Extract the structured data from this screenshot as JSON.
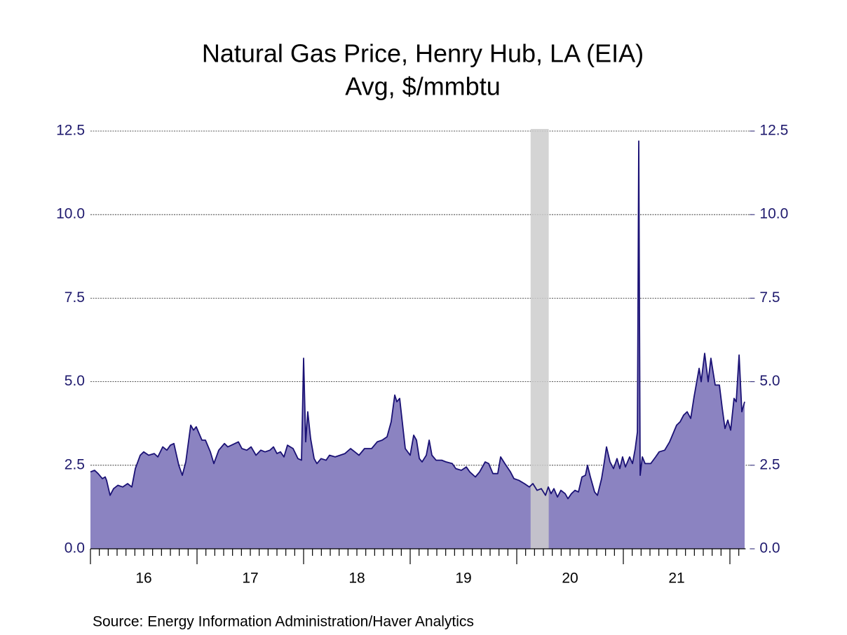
{
  "chart_data": {
    "type": "area",
    "title": "Natural Gas Price, Henry Hub, LA (EIA)",
    "subtitle": "Avg, $/mmbtu",
    "source": "Source:  Energy Information Administration/Haver Analytics",
    "fill_color": "#8b83c1",
    "line_color": "#1a1175",
    "recession_color": "#cccccc",
    "recession": [
      20.13,
      20.3
    ],
    "xlim": [
      16,
      22.2
    ],
    "xticks": [
      {
        "value": 16.5,
        "label": "16"
      },
      {
        "value": 17.5,
        "label": "17"
      },
      {
        "value": 18.5,
        "label": "18"
      },
      {
        "value": 19.5,
        "label": "19"
      },
      {
        "value": 20.5,
        "label": "20"
      },
      {
        "value": 21.5,
        "label": "21"
      }
    ],
    "ylim": [
      0,
      12.5
    ],
    "yticks": [
      {
        "value": 0,
        "label": "0.0"
      },
      {
        "value": 2.5,
        "label": "2.5"
      },
      {
        "value": 5,
        "label": "5.0"
      },
      {
        "value": 7.5,
        "label": "7.5"
      },
      {
        "value": 10,
        "label": "10.0"
      },
      {
        "value": 12.5,
        "label": "12.5"
      }
    ],
    "y2lim": [
      0,
      12.5
    ],
    "y2ticks": [
      {
        "value": 0,
        "label": "0.0"
      },
      {
        "value": 2.5,
        "label": "2.5"
      },
      {
        "value": 5,
        "label": "5.0"
      },
      {
        "value": 7.5,
        "label": "7.5"
      },
      {
        "value": 10,
        "label": "10.0"
      },
      {
        "value": 12.5,
        "label": "12.5"
      }
    ],
    "grid": true,
    "x": [
      16.0,
      16.039,
      16.072,
      16.112,
      16.138,
      16.151,
      16.184,
      16.217,
      16.257,
      16.303,
      16.349,
      16.388,
      16.421,
      16.467,
      16.5,
      16.546,
      16.599,
      16.632,
      16.678,
      16.717,
      16.75,
      16.783,
      16.829,
      16.862,
      16.895,
      16.941,
      16.967,
      16.993,
      17.046,
      17.079,
      17.125,
      17.158,
      17.204,
      17.257,
      17.289,
      17.355,
      17.388,
      17.421,
      17.467,
      17.507,
      17.553,
      17.599,
      17.638,
      17.684,
      17.717,
      17.75,
      17.783,
      17.816,
      17.849,
      17.901,
      17.947,
      17.98,
      18.0,
      18.02,
      18.039,
      18.066,
      18.099,
      18.125,
      18.164,
      18.211,
      18.243,
      18.296,
      18.342,
      18.388,
      18.441,
      18.48,
      18.52,
      18.572,
      18.638,
      18.691,
      18.737,
      18.783,
      18.822,
      18.855,
      18.875,
      18.901,
      18.954,
      19.0,
      19.033,
      19.059,
      19.086,
      19.112,
      19.151,
      19.178,
      19.204,
      19.243,
      19.296,
      19.336,
      19.395,
      19.428,
      19.48,
      19.526,
      19.559,
      19.612,
      19.651,
      19.704,
      19.737,
      19.776,
      19.822,
      19.849,
      19.888,
      19.941,
      19.974,
      20.02,
      20.072,
      20.118,
      20.151,
      20.191,
      20.23,
      20.27,
      20.296,
      20.322,
      20.349,
      20.382,
      20.414,
      20.454,
      20.48,
      20.513,
      20.546,
      20.579,
      20.612,
      20.645,
      20.664,
      20.691,
      20.73,
      20.757,
      20.796,
      20.822,
      20.842,
      20.875,
      20.908,
      20.941,
      20.967,
      20.993,
      21.02,
      21.059,
      21.086,
      21.112,
      21.132,
      21.145,
      21.158,
      21.178,
      21.204,
      21.257,
      21.303,
      21.336,
      21.388,
      21.434,
      21.467,
      21.5,
      21.533,
      21.566,
      21.599,
      21.632,
      21.664,
      21.711,
      21.73,
      21.763,
      21.796,
      21.822,
      21.862,
      21.901,
      21.928,
      21.954,
      21.98,
      22.007,
      22.039,
      22.059,
      22.086,
      22.112,
      22.138
    ],
    "values": [
      2.3,
      2.35,
      2.25,
      2.1,
      2.15,
      2.05,
      1.6,
      1.8,
      1.9,
      1.85,
      1.95,
      1.85,
      2.4,
      2.8,
      2.9,
      2.8,
      2.85,
      2.75,
      3.05,
      2.95,
      3.1,
      3.15,
      2.5,
      2.2,
      2.6,
      3.7,
      3.55,
      3.65,
      3.25,
      3.25,
      2.9,
      2.55,
      2.95,
      3.15,
      3.05,
      3.15,
      3.2,
      3.0,
      2.95,
      3.05,
      2.8,
      2.95,
      2.9,
      2.95,
      3.05,
      2.85,
      2.9,
      2.75,
      3.1,
      3.0,
      2.7,
      2.65,
      5.7,
      3.2,
      4.1,
      3.3,
      2.7,
      2.55,
      2.7,
      2.65,
      2.8,
      2.75,
      2.8,
      2.85,
      3.0,
      2.9,
      2.8,
      3.0,
      3.0,
      3.2,
      3.25,
      3.35,
      3.8,
      4.6,
      4.4,
      4.5,
      3.0,
      2.8,
      3.4,
      3.25,
      2.7,
      2.6,
      2.8,
      3.25,
      2.8,
      2.65,
      2.65,
      2.6,
      2.55,
      2.4,
      2.35,
      2.45,
      2.3,
      2.15,
      2.3,
      2.6,
      2.55,
      2.25,
      2.25,
      2.75,
      2.55,
      2.3,
      2.1,
      2.05,
      1.95,
      1.85,
      1.95,
      1.75,
      1.8,
      1.6,
      1.85,
      1.65,
      1.8,
      1.55,
      1.75,
      1.65,
      1.5,
      1.65,
      1.75,
      1.7,
      2.15,
      2.2,
      2.5,
      2.15,
      1.7,
      1.6,
      2.1,
      2.6,
      3.05,
      2.6,
      2.4,
      2.7,
      2.4,
      2.75,
      2.45,
      2.75,
      2.55,
      3.0,
      3.5,
      12.2,
      2.2,
      2.75,
      2.55,
      2.55,
      2.75,
      2.9,
      2.95,
      3.2,
      3.45,
      3.7,
      3.8,
      4.0,
      4.1,
      3.9,
      4.55,
      5.4,
      5.0,
      5.85,
      5.0,
      5.7,
      4.9,
      4.9,
      4.2,
      3.6,
      3.85,
      3.55,
      4.5,
      4.4,
      5.8,
      4.1,
      4.4
    ]
  }
}
